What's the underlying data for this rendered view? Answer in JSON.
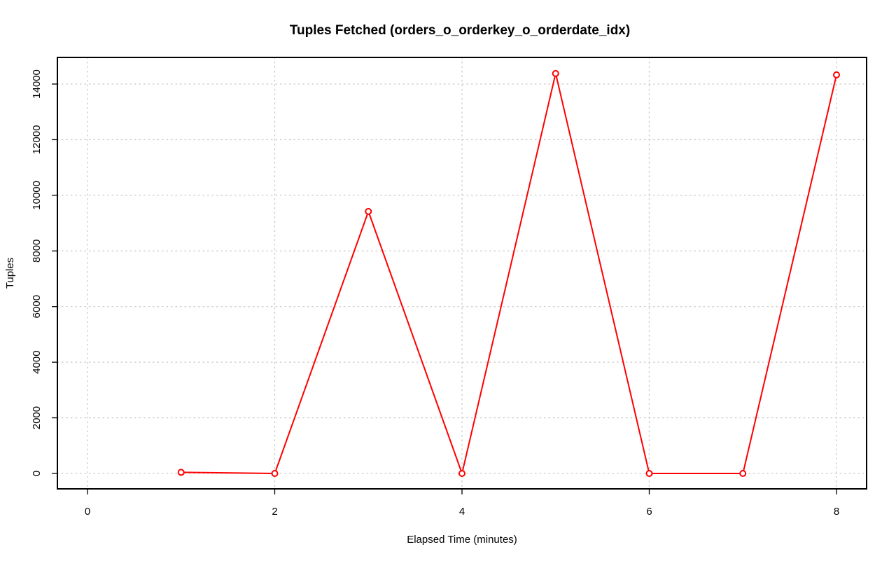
{
  "chart_data": {
    "type": "line",
    "title": "Tuples Fetched (orders_o_orderkey_o_orderdate_idx)",
    "xlabel": "Elapsed Time (minutes)",
    "ylabel": "Tuples",
    "xlim": [
      0,
      8
    ],
    "ylim": [
      0,
      14000
    ],
    "x_ticks": [
      0,
      2,
      4,
      6,
      8
    ],
    "y_ticks": [
      0,
      2000,
      4000,
      6000,
      8000,
      10000,
      12000,
      14000
    ],
    "x_tick_labels": [
      "0",
      "2",
      "4",
      "6",
      "8"
    ],
    "y_tick_labels": [
      "0",
      "2000",
      "4000",
      "6000",
      "8000",
      "10000",
      "12000",
      "14000"
    ],
    "grid": true,
    "legend": "none",
    "series": [
      {
        "color": "#ff0000",
        "x": [
          1,
          2,
          3,
          4,
          5,
          6,
          7,
          8
        ],
        "y": [
          40,
          0,
          9420,
          0,
          14380,
          0,
          0,
          14330
        ]
      }
    ]
  }
}
